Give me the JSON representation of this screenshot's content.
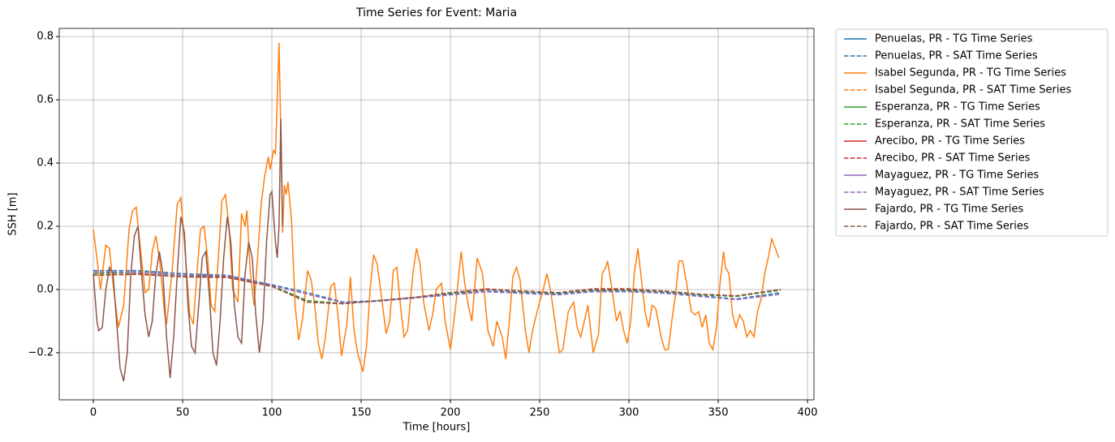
{
  "chart_data": {
    "type": "line",
    "title": "Time Series for Event: Maria",
    "x_label": "Time [hours]",
    "y_label": "SSH [m]",
    "xlim": [
      -19.1,
      403.6
    ],
    "ylim": [
      -0.349,
      0.826
    ],
    "xticks": [
      0,
      50,
      100,
      150,
      200,
      250,
      300,
      350,
      400
    ],
    "yticks": [
      {
        "value": -0.2,
        "label": "−0.2"
      },
      {
        "value": 0,
        "label": "0.0"
      },
      {
        "value": 0.2,
        "label": "0.2"
      },
      {
        "value": 0.4,
        "label": "0.4"
      },
      {
        "value": 0.6,
        "label": "0.6"
      },
      {
        "value": 0.8,
        "label": "0.8"
      }
    ],
    "grid": true,
    "legend": "outside-right",
    "series": [
      {
        "name": "Penuelas, PR - TG Time Series",
        "color": "#1f77b4",
        "style": "solid",
        "x": [],
        "values": []
      },
      {
        "name": "Penuelas, PR - SAT Time Series",
        "color": "#1f77b4",
        "style": "dashed",
        "x": [
          0,
          25,
          50,
          75,
          100,
          120,
          140,
          160,
          180,
          200,
          220,
          240,
          260,
          280,
          300,
          320,
          340,
          360,
          385
        ],
        "values": [
          0.06,
          0.06,
          0.05,
          0.045,
          0.015,
          -0.01,
          -0.04,
          -0.035,
          -0.025,
          -0.015,
          -0.005,
          -0.01,
          -0.015,
          -0.005,
          -0.005,
          -0.01,
          -0.02,
          -0.03,
          -0.01
        ]
      },
      {
        "name": "Isabel Segunda, PR - TG Time Series",
        "color": "#ff7f0e",
        "style": "solid",
        "x": [
          0,
          2,
          4,
          7,
          9,
          11,
          14,
          17,
          20,
          22,
          24,
          26,
          29,
          31,
          33,
          35,
          37,
          40,
          41,
          44,
          47,
          49,
          51,
          54,
          56,
          58,
          60,
          62,
          64,
          66,
          68,
          70,
          72,
          74,
          76,
          78,
          81,
          83,
          85,
          86,
          88,
          90,
          92,
          94,
          96,
          98,
          99,
          101,
          102,
          103,
          104,
          105,
          106,
          107,
          108,
          109,
          111,
          113,
          115,
          117,
          120,
          122,
          124,
          126,
          128,
          130,
          133,
          135,
          137,
          139,
          142,
          144,
          146,
          148,
          151,
          153,
          155,
          157,
          159,
          162,
          164,
          166,
          168,
          170,
          172,
          174,
          176,
          179,
          181,
          183,
          185,
          188,
          190,
          192,
          195,
          197,
          200,
          203,
          206,
          208,
          210,
          212,
          215,
          218,
          221,
          224,
          226,
          229,
          231,
          233,
          235,
          237,
          239,
          242,
          244,
          246,
          249,
          252,
          254,
          256,
          259,
          261,
          263,
          266,
          269,
          271,
          273,
          275,
          277,
          280,
          283,
          285,
          287,
          288,
          290,
          293,
          295,
          297,
          299,
          301,
          303,
          305,
          307,
          309,
          311,
          313,
          315,
          318,
          320,
          322,
          324,
          326,
          328,
          330,
          332,
          335,
          337,
          339,
          341,
          343,
          345,
          347,
          349,
          351,
          353,
          354,
          356,
          358,
          360,
          362,
          364,
          366,
          368,
          370,
          372,
          374,
          376,
          378,
          380,
          382,
          384
        ],
        "values": [
          0.19,
          0.1,
          0.0,
          0.14,
          0.13,
          0.02,
          -0.12,
          -0.05,
          0.19,
          0.25,
          0.26,
          0.15,
          -0.01,
          0.0,
          0.12,
          0.17,
          0.1,
          -0.08,
          -0.11,
          0.05,
          0.27,
          0.29,
          0.15,
          -0.08,
          -0.11,
          0.05,
          0.19,
          0.2,
          0.1,
          -0.05,
          -0.07,
          0.1,
          0.28,
          0.3,
          0.2,
          0.0,
          -0.04,
          0.24,
          0.2,
          0.25,
          0.05,
          -0.05,
          0.1,
          0.27,
          0.36,
          0.42,
          0.38,
          0.44,
          0.43,
          0.6,
          0.78,
          0.5,
          0.18,
          0.33,
          0.3,
          0.34,
          0.22,
          -0.05,
          -0.16,
          -0.1,
          0.06,
          0.03,
          -0.05,
          -0.17,
          -0.22,
          -0.15,
          0.01,
          0.02,
          -0.08,
          -0.21,
          -0.11,
          0.04,
          -0.13,
          -0.2,
          -0.26,
          -0.18,
          0.0,
          0.11,
          0.08,
          -0.05,
          -0.14,
          -0.1,
          0.06,
          0.07,
          -0.05,
          -0.15,
          -0.13,
          0.05,
          0.13,
          0.08,
          -0.04,
          -0.13,
          -0.08,
          0.0,
          0.02,
          -0.1,
          -0.19,
          -0.05,
          0.12,
          0.02,
          -0.05,
          -0.1,
          0.1,
          0.05,
          -0.13,
          -0.18,
          -0.1,
          -0.15,
          -0.22,
          -0.1,
          0.04,
          0.07,
          0.03,
          -0.13,
          -0.2,
          -0.13,
          -0.06,
          0.0,
          0.05,
          0.0,
          -0.12,
          -0.2,
          -0.19,
          -0.07,
          -0.04,
          -0.12,
          -0.15,
          -0.1,
          -0.05,
          -0.2,
          -0.14,
          0.05,
          0.07,
          0.09,
          0.02,
          -0.1,
          -0.07,
          -0.13,
          -0.17,
          -0.1,
          0.05,
          0.13,
          0.03,
          -0.07,
          -0.12,
          -0.05,
          -0.06,
          -0.15,
          -0.19,
          -0.19,
          -0.1,
          -0.02,
          0.09,
          0.09,
          0.03,
          -0.07,
          -0.08,
          -0.07,
          -0.12,
          -0.08,
          -0.17,
          -0.19,
          -0.12,
          0.02,
          0.12,
          0.07,
          0.05,
          -0.08,
          -0.12,
          -0.08,
          -0.1,
          -0.15,
          -0.13,
          -0.15,
          -0.07,
          -0.03,
          0.05,
          0.1,
          0.16,
          0.13,
          0.1
        ]
      },
      {
        "name": "Isabel Segunda, PR - SAT Time Series",
        "color": "#ff7f0e",
        "style": "dashed",
        "x": [
          0,
          25,
          50,
          75,
          100,
          120,
          140,
          160,
          180,
          200,
          220,
          240,
          260,
          280,
          300,
          320,
          340,
          360,
          385
        ],
        "values": [
          0.045,
          0.05,
          0.04,
          0.04,
          0.01,
          -0.04,
          -0.045,
          -0.035,
          -0.025,
          -0.01,
          0.0,
          -0.005,
          -0.01,
          0.0,
          0.0,
          -0.005,
          -0.015,
          -0.02,
          0.0
        ]
      },
      {
        "name": "Esperanza, PR - TG Time Series",
        "color": "#2ca02c",
        "style": "solid",
        "x": [],
        "values": []
      },
      {
        "name": "Esperanza, PR - SAT Time Series",
        "color": "#2ca02c",
        "style": "dashed",
        "x": [
          0,
          25,
          50,
          75,
          100,
          120,
          140,
          160,
          180,
          200,
          220,
          240,
          260,
          280,
          300,
          320,
          340,
          360,
          385
        ],
        "values": [
          0.05,
          0.055,
          0.045,
          0.04,
          0.012,
          -0.035,
          -0.045,
          -0.035,
          -0.025,
          -0.012,
          0.0,
          -0.007,
          -0.012,
          -0.002,
          -0.002,
          -0.007,
          -0.017,
          -0.022,
          -0.002
        ]
      },
      {
        "name": "Arecibo, PR - TG Time Series",
        "color": "#d62728",
        "style": "solid",
        "x": [],
        "values": []
      },
      {
        "name": "Arecibo, PR - SAT Time Series",
        "color": "#d62728",
        "style": "dashed",
        "x": [
          0,
          25,
          50,
          75,
          100,
          120,
          140,
          160,
          180,
          200,
          220,
          240,
          260,
          280,
          300,
          320,
          340,
          360,
          385
        ],
        "values": [
          0.045,
          0.048,
          0.04,
          0.038,
          0.01,
          -0.04,
          -0.045,
          -0.035,
          -0.025,
          -0.01,
          0.002,
          -0.005,
          -0.01,
          0.002,
          0.002,
          -0.005,
          -0.015,
          -0.02,
          0.0
        ]
      },
      {
        "name": "Mayaguez, PR - TG Time Series",
        "color": "#9467bd",
        "style": "solid",
        "x": [],
        "values": []
      },
      {
        "name": "Mayaguez, PR - SAT Time Series",
        "color": "#9467bd",
        "style": "dashed",
        "x": [
          0,
          25,
          50,
          75,
          100,
          120,
          140,
          160,
          180,
          200,
          220,
          240,
          260,
          280,
          300,
          320,
          340,
          360,
          385
        ],
        "values": [
          0.055,
          0.055,
          0.045,
          0.043,
          0.013,
          -0.015,
          -0.042,
          -0.037,
          -0.027,
          -0.017,
          -0.007,
          -0.012,
          -0.017,
          -0.007,
          -0.007,
          -0.012,
          -0.022,
          -0.032,
          -0.015
        ]
      },
      {
        "name": "Fajardo, PR - TG Time Series",
        "color": "#8c564b",
        "style": "solid",
        "x": [
          0,
          2,
          3,
          5,
          7,
          9,
          11,
          13,
          15,
          17,
          19,
          21,
          23,
          25,
          27,
          29,
          31,
          33,
          35,
          37,
          39,
          41,
          43,
          45,
          47,
          49,
          51,
          53,
          55,
          57,
          59,
          61,
          63,
          65,
          67,
          69,
          71,
          73,
          75,
          77,
          79,
          81,
          83,
          85,
          87,
          89,
          91,
          93,
          95,
          97,
          99,
          100,
          102,
          103,
          104,
          105,
          106
        ],
        "values": [
          0.05,
          -0.1,
          -0.13,
          -0.12,
          0.0,
          0.07,
          0.05,
          -0.1,
          -0.25,
          -0.29,
          -0.2,
          0.05,
          0.17,
          0.2,
          0.05,
          -0.08,
          -0.15,
          -0.1,
          0.05,
          0.12,
          0.05,
          -0.15,
          -0.28,
          -0.15,
          0.05,
          0.23,
          0.18,
          -0.05,
          -0.18,
          -0.2,
          -0.05,
          0.1,
          0.12,
          -0.02,
          -0.2,
          -0.24,
          -0.1,
          0.1,
          0.23,
          0.15,
          -0.05,
          -0.15,
          -0.17,
          0.05,
          0.15,
          0.1,
          -0.08,
          -0.2,
          -0.1,
          0.15,
          0.3,
          0.31,
          0.15,
          0.1,
          0.2,
          0.54,
          0.2
        ]
      },
      {
        "name": "Fajardo, PR - SAT Time Series",
        "color": "#8c564b",
        "style": "dashed",
        "x": [
          0,
          25,
          50,
          75,
          100,
          120,
          140,
          160,
          180,
          200,
          220,
          240,
          260,
          280,
          300,
          320,
          340,
          360,
          385
        ],
        "values": [
          0.045,
          0.05,
          0.04,
          0.04,
          0.01,
          -0.04,
          -0.045,
          -0.035,
          -0.025,
          -0.01,
          0.0,
          -0.005,
          -0.01,
          0.0,
          0.0,
          -0.005,
          -0.015,
          -0.02,
          0.0
        ]
      }
    ]
  }
}
